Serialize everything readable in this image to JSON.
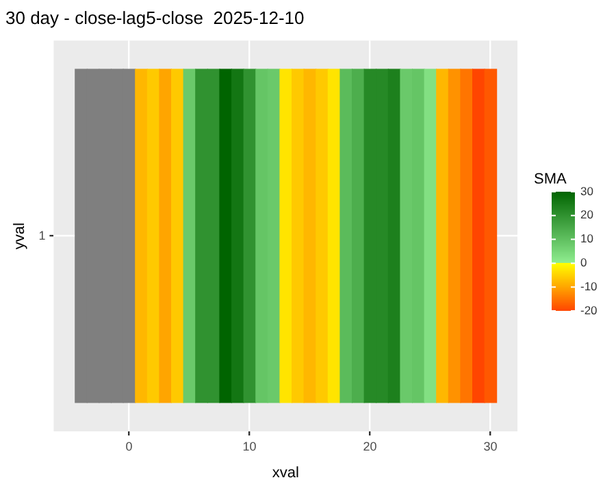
{
  "chart_data": {
    "type": "heatmap",
    "title": "30 day - close-lag5-close  2025-12-10",
    "xlabel": "xval",
    "ylabel": "yval",
    "clabel": "SMA",
    "x": [
      -4,
      -3,
      -2,
      -1,
      0,
      1,
      2,
      3,
      4,
      5,
      6,
      7,
      8,
      9,
      10,
      11,
      12,
      13,
      14,
      15,
      16,
      17,
      18,
      19,
      20,
      21,
      22,
      23,
      24,
      25,
      26,
      27,
      28,
      29,
      30
    ],
    "y_categories": [
      "1"
    ],
    "cells": [
      [
        null,
        null,
        null,
        null,
        null,
        -8,
        -6,
        -10,
        -6,
        8,
        20,
        20,
        30,
        26,
        20,
        9,
        8,
        -3,
        -6,
        -8,
        -6,
        -3,
        11,
        14,
        22,
        22,
        24,
        8,
        9,
        3,
        -8,
        -12,
        -15,
        -20,
        -18
      ]
    ],
    "xlim": [
      -6.25,
      32.25
    ],
    "xticks": [
      0,
      10,
      20,
      30
    ],
    "clim": [
      -20,
      30
    ],
    "cticks": [
      -20,
      -10,
      0,
      10,
      20,
      30
    ],
    "grid": true
  }
}
